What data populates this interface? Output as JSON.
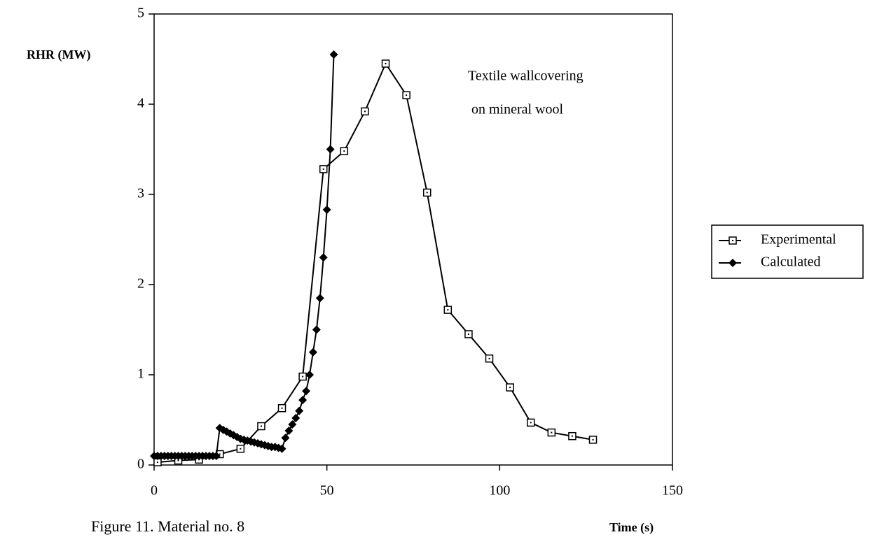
{
  "chart_data": {
    "type": "line",
    "y_label": "RHR (MW)",
    "x_label": "Time (s)",
    "caption": "Figure 11.  Material no. 8",
    "annotation": [
      "Textile wallcovering",
      " on mineral wool"
    ],
    "xlim": [
      0,
      150
    ],
    "xticks": [
      0,
      50,
      100,
      150
    ],
    "ylim": [
      0,
      5
    ],
    "yticks": [
      0,
      1,
      2,
      3,
      4,
      5
    ],
    "grid": false,
    "legend": "right",
    "series": [
      {
        "name": "Experimental",
        "color": "#000000",
        "marker": "open-square",
        "x": [
          1,
          7,
          13,
          19,
          25,
          31,
          37,
          43,
          49,
          55,
          61,
          67,
          73,
          79,
          85,
          91,
          97,
          103,
          109,
          115,
          121,
          127
        ],
        "values": [
          0.03,
          0.05,
          0.06,
          0.12,
          0.18,
          0.43,
          0.63,
          0.98,
          3.28,
          3.48,
          3.92,
          4.45,
          4.1,
          3.02,
          1.72,
          1.45,
          1.18,
          0.86,
          0.47,
          0.36,
          0.32,
          0.28
        ]
      },
      {
        "name": "Calculated",
        "color": "#000000",
        "marker": "filled-diamond",
        "x": [
          0,
          1,
          2,
          3,
          4,
          5,
          6,
          7,
          8,
          9,
          10,
          11,
          12,
          13,
          14,
          15,
          16,
          17,
          18,
          19,
          20,
          21,
          22,
          23,
          24,
          25,
          26,
          27,
          28,
          29,
          30,
          31,
          32,
          33,
          34,
          35,
          36,
          37,
          38,
          39,
          40,
          41,
          42,
          43,
          44,
          45,
          46,
          47,
          48,
          49,
          50,
          51,
          52
        ],
        "values": [
          0.1,
          0.1,
          0.1,
          0.1,
          0.1,
          0.1,
          0.1,
          0.1,
          0.1,
          0.1,
          0.1,
          0.1,
          0.1,
          0.1,
          0.1,
          0.1,
          0.1,
          0.1,
          0.1,
          0.41,
          0.39,
          0.37,
          0.35,
          0.33,
          0.31,
          0.29,
          0.28,
          0.27,
          0.26,
          0.25,
          0.24,
          0.23,
          0.22,
          0.21,
          0.2,
          0.2,
          0.19,
          0.18,
          0.3,
          0.38,
          0.45,
          0.52,
          0.6,
          0.72,
          0.82,
          1.0,
          1.25,
          1.5,
          1.85,
          2.3,
          2.83,
          3.5,
          4.55
        ]
      }
    ]
  }
}
